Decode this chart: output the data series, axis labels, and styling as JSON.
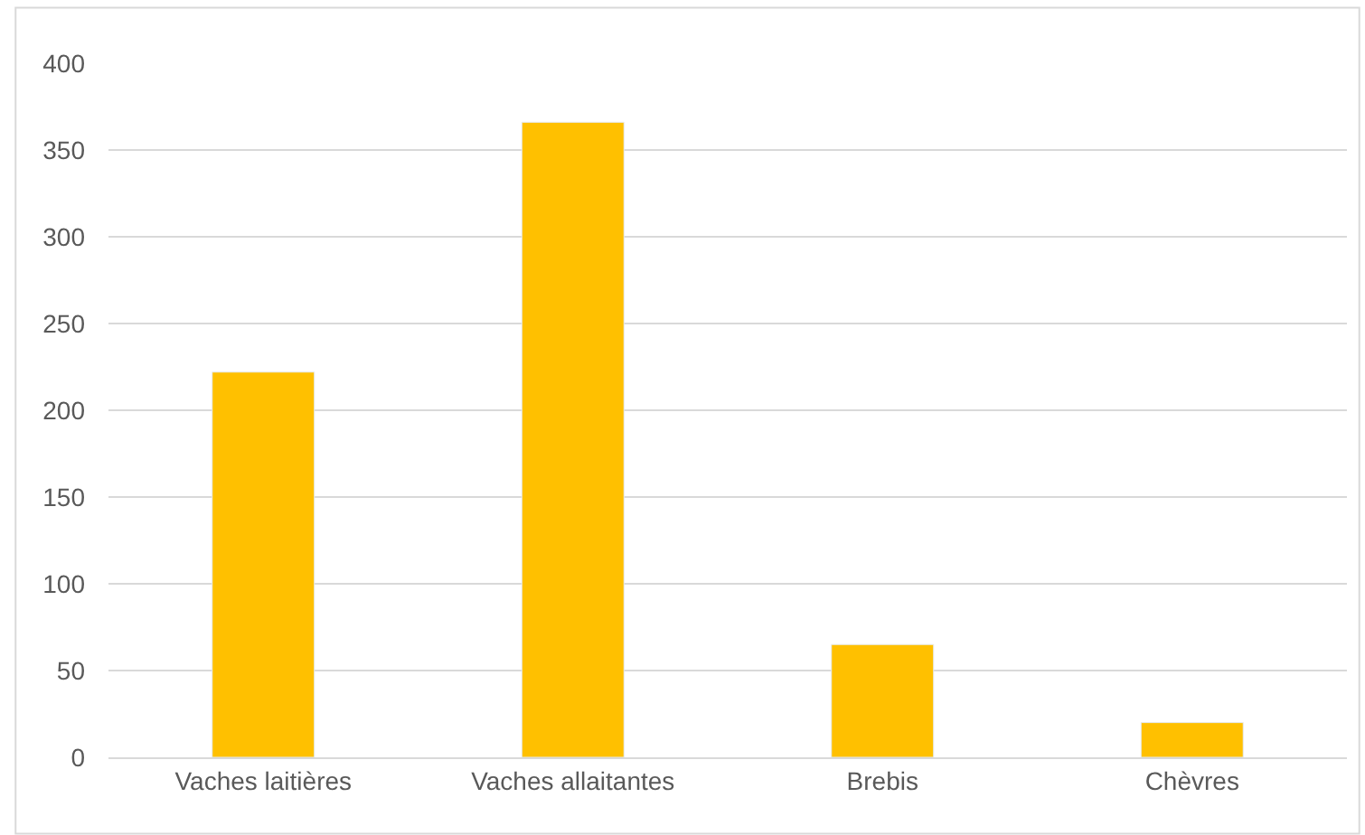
{
  "chart_data": {
    "type": "bar",
    "categories": [
      "Vaches laitières",
      "Vaches allaitantes",
      "Brebis",
      "Chèvres"
    ],
    "values": [
      222,
      366,
      65,
      20
    ],
    "color": "#ffc000",
    "ylim": [
      0,
      400
    ],
    "yticks": [
      0,
      50,
      100,
      150,
      200,
      250,
      300,
      350,
      400
    ],
    "grid": "y",
    "legend": false
  }
}
